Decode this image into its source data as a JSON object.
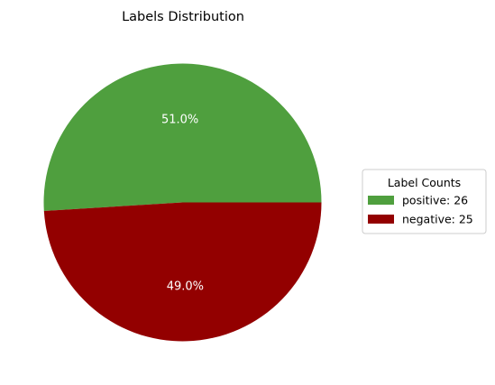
{
  "chart_data": {
    "type": "pie",
    "title": "Labels Distribution",
    "slices": [
      {
        "label": "positive",
        "value": 26,
        "color": "#4f9f3e",
        "percent_label": "51.0%",
        "legend_label": "positive: 26"
      },
      {
        "label": "negative",
        "value": 25,
        "color": "#930000",
        "percent_label": "49.0%",
        "legend_label": "negative: 25"
      }
    ],
    "legend": {
      "title": "Label Counts",
      "placement": "right"
    },
    "start_angle_deg": 0,
    "direction": "counterclockwise"
  }
}
